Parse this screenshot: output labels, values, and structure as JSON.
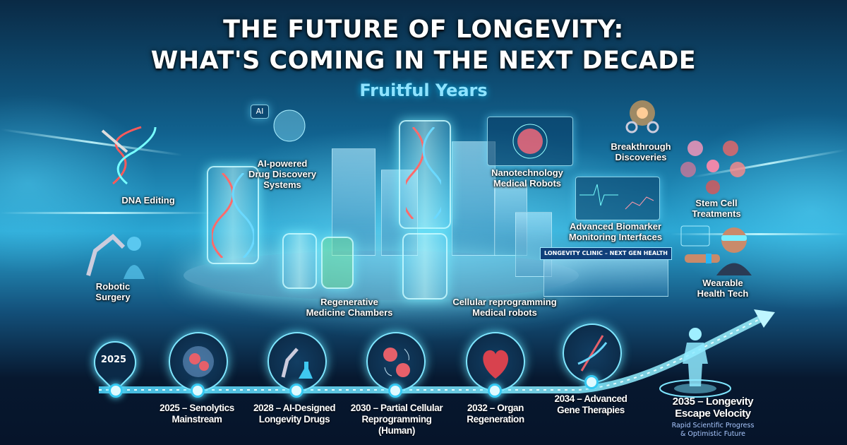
{
  "header": {
    "title_line1": "THE FUTURE OF LONGEVITY:",
    "title_line2": "WHAT'S COMING IN THE NEXT DECADE",
    "subtitle": "Fruitful Years"
  },
  "features": {
    "dna_editing": "DNA Editing",
    "ai_drug_discovery": "AI-powered\nDrug Discovery\nSystems",
    "ai_badge": "AI",
    "nanotech": "Nanotechnology\nMedical Robots",
    "breakthrough": "Breakthrough\nDiscoveries",
    "stem_cell": "Stem Cell\nTreatments",
    "biomarker": "Advanced Biomarker\nMonitoring Interfaces",
    "clinic_sign": "LONGEVITY CLINIC – NEXT GEN HEALTH",
    "wearable": "Wearable\nHealth Tech",
    "robotic_surgery": "Robotic\nSurgery",
    "regenerative": "Regenerative\nMedicine Chambers",
    "cellular": "Cellular reprogramming\nMedical robots"
  },
  "timeline": {
    "start_pin": "2025",
    "milestones": [
      {
        "label": "2025 – Senolytics\nMainstream",
        "icon": "senescent-cell-icon"
      },
      {
        "label": "2028 – AI-Designed\nLongevity Drugs",
        "icon": "robot-arm-flask-icon"
      },
      {
        "label": "2030 – Partial Cellular\nReprogramming\n(Human)",
        "icon": "cell-cycle-icon"
      },
      {
        "label": "2032 – Organ\nRegeneration",
        "icon": "heart-icon"
      },
      {
        "label": "2034 – Advanced\nGene Therapies",
        "icon": "dna-icon"
      }
    ],
    "final": {
      "label": "2035 – Longevity\nEscape Velocity",
      "caption": "Rapid Scientific Progress\n& Optimistic Future",
      "icon": "human-hologram-icon"
    }
  },
  "colors": {
    "accent": "#7fe6ff",
    "background_dark": "#06142a",
    "glow": "#2aa6d3"
  }
}
